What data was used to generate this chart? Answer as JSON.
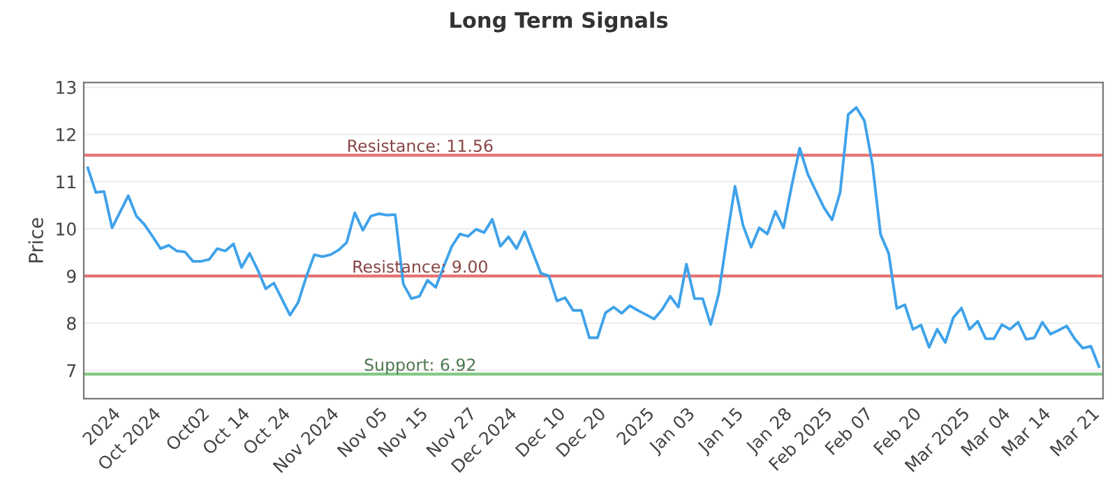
{
  "chart_data": {
    "type": "line",
    "title": "Long Term Signals",
    "ylabel": "Price",
    "categories": [
      null,
      null,
      null,
      "2024",
      null,
      null,
      null,
      null,
      "Oct 2024",
      null,
      null,
      null,
      null,
      null,
      "Oct02",
      null,
      null,
      null,
      null,
      "Oct 14",
      null,
      null,
      null,
      null,
      "Oct 24",
      null,
      null,
      null,
      null,
      null,
      "Nov 2024",
      null,
      null,
      null,
      null,
      null,
      "Nov 05",
      null,
      null,
      null,
      null,
      "Nov 15",
      null,
      null,
      null,
      null,
      null,
      "Nov 27",
      null,
      null,
      null,
      null,
      "Dec 2024",
      null,
      null,
      null,
      null,
      null,
      "Dec 10",
      null,
      null,
      null,
      null,
      "Dec 20",
      null,
      null,
      null,
      null,
      null,
      "2025",
      null,
      null,
      null,
      null,
      "Jan 03",
      null,
      null,
      null,
      null,
      null,
      "Jan 15",
      null,
      null,
      null,
      null,
      null,
      "Jan 28",
      null,
      null,
      null,
      null,
      "Feb 2025",
      null,
      null,
      null,
      null,
      "Feb 07",
      null,
      null,
      null,
      null,
      null,
      "Feb 20",
      null,
      null,
      null,
      null,
      null,
      "Mar 2025",
      null,
      null,
      null,
      null,
      "Mar 04",
      null,
      null,
      null,
      null,
      "Mar 14",
      null,
      null,
      null,
      null,
      null,
      "Mar 21",
      null
    ],
    "series": [
      {
        "color": "#3fa2ea",
        "values": [
          11.29,
          10.77,
          10.79,
          10.02,
          10.36,
          10.7,
          10.27,
          10.09,
          9.84,
          9.58,
          9.65,
          9.53,
          9.51,
          9.31,
          9.31,
          9.35,
          9.58,
          9.53,
          9.68,
          9.18,
          9.48,
          9.13,
          8.73,
          8.85,
          8.51,
          8.17,
          8.44,
          8.98,
          9.45,
          9.41,
          9.45,
          9.55,
          9.71,
          10.34,
          9.97,
          10.27,
          10.32,
          10.29,
          10.3,
          8.83,
          8.52,
          8.57,
          8.91,
          8.76,
          9.2,
          9.63,
          9.89,
          9.84,
          9.99,
          9.92,
          10.2,
          9.63,
          9.83,
          9.58,
          9.94,
          9.5,
          9.06,
          9.0,
          8.47,
          8.54,
          8.27,
          8.27,
          7.69,
          7.69,
          8.22,
          8.34,
          8.21,
          8.37,
          8.27,
          8.18,
          8.09,
          8.29,
          8.57,
          8.34,
          9.25,
          8.52,
          8.52,
          7.97,
          8.63,
          9.8,
          10.9,
          10.07,
          9.61,
          10.02,
          9.89,
          10.37,
          10.02,
          10.9,
          11.71,
          11.16,
          10.8,
          10.45,
          10.19,
          10.77,
          12.42,
          12.57,
          12.29,
          11.36,
          9.88,
          9.48,
          8.31,
          8.39,
          7.87,
          7.96,
          7.49,
          7.87,
          7.59,
          8.12,
          8.32,
          7.87,
          8.04,
          7.67,
          7.67,
          7.97,
          7.87,
          8.02,
          7.66,
          7.69,
          8.02,
          7.77,
          7.85,
          7.94,
          7.67,
          7.47,
          7.51,
          7.08
        ]
      }
    ],
    "ylim": [
      6.4,
      13.1
    ],
    "yticks": [
      7,
      8,
      9,
      10,
      11,
      12,
      13
    ],
    "grid": "y",
    "ref_lines": [
      {
        "axis": "y",
        "value": 11.56,
        "label": "Resistance: 11.56",
        "color": "#e57373"
      },
      {
        "axis": "y",
        "value": 9.0,
        "label": "Resistance: 9.00",
        "color": "#e57373"
      },
      {
        "axis": "y",
        "value": 6.92,
        "label": "Support: 6.92",
        "color": "#81c784"
      }
    ]
  }
}
